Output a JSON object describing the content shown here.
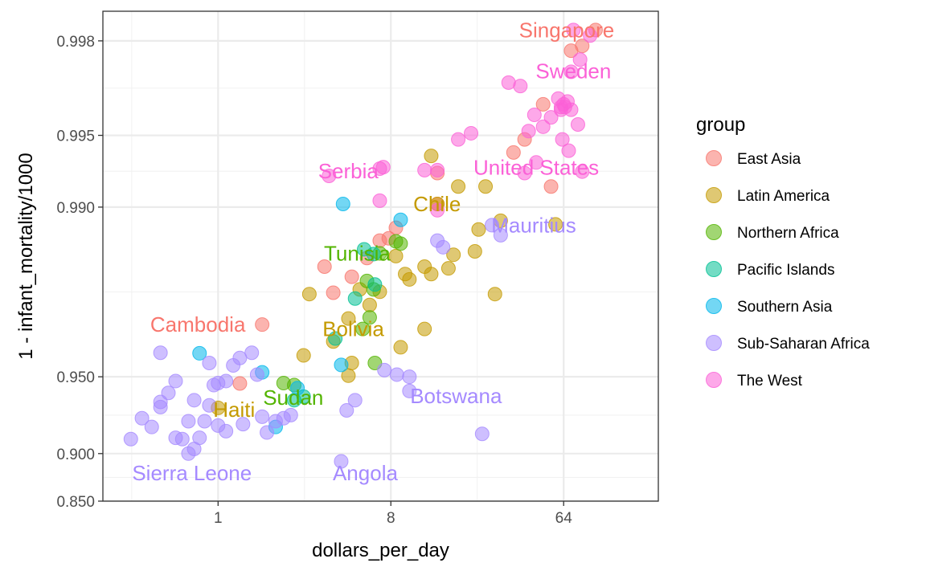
{
  "chart_data": {
    "type": "scatter",
    "xlabel": "dollars_per_day",
    "ylabel": "1 - infant_mortality/1000",
    "x_scale": "log2",
    "y_scale": "logit",
    "xlim": [
      0.25,
      200
    ],
    "ylim": [
      0.85,
      0.9985
    ],
    "x_ticks": [
      {
        "value": 1,
        "label": "1"
      },
      {
        "value": 8,
        "label": "8"
      },
      {
        "value": 64,
        "label": "64"
      }
    ],
    "y_ticks": [
      {
        "value": 0.85,
        "label": "0.850"
      },
      {
        "value": 0.9,
        "label": "0.900"
      },
      {
        "value": 0.95,
        "label": "0.950"
      },
      {
        "value": 0.99,
        "label": "0.990"
      },
      {
        "value": 0.995,
        "label": "0.995"
      },
      {
        "value": 0.998,
        "label": "0.998"
      }
    ],
    "grid": true,
    "legend": {
      "title": "group",
      "placement": "right"
    },
    "groups": [
      {
        "name": "East Asia",
        "color": "#F8766D"
      },
      {
        "name": "Latin America",
        "color": "#C49A00"
      },
      {
        "name": "Northern Africa",
        "color": "#53B400"
      },
      {
        "name": "Pacific Islands",
        "color": "#00C094"
      },
      {
        "name": "Southern Asia",
        "color": "#00B6EB"
      },
      {
        "name": "Sub-Saharan Africa",
        "color": "#A58AFF"
      },
      {
        "name": "The West",
        "color": "#FB61D7"
      }
    ],
    "series": [
      {
        "name": "East Asia",
        "points": [
          [
            94,
            0.9982
          ],
          [
            80,
            0.9979
          ],
          [
            70,
            0.9978
          ],
          [
            35,
            0.9941
          ],
          [
            40,
            0.9948
          ],
          [
            50,
            0.9963
          ],
          [
            14,
            0.9928
          ],
          [
            55,
            0.9918
          ],
          [
            1.7,
            0.9693
          ],
          [
            1.3,
            0.9468
          ],
          [
            3.6,
            0.9823
          ],
          [
            6,
            0.9837
          ],
          [
            7.8,
            0.9865
          ],
          [
            5,
            0.9805
          ],
          [
            4,
            0.9773
          ],
          [
            14,
            0.9903
          ],
          [
            8.5,
            0.9878
          ],
          [
            7,
            0.9862
          ]
        ]
      },
      {
        "name": "Latin America",
        "points": [
          [
            13,
            0.9939
          ],
          [
            18,
            0.9918
          ],
          [
            25,
            0.9918
          ],
          [
            14,
            0.9903
          ],
          [
            23,
            0.9876
          ],
          [
            30,
            0.9886
          ],
          [
            58,
            0.9882
          ],
          [
            12,
            0.9823
          ],
          [
            8.5,
            0.984
          ],
          [
            17,
            0.9842
          ],
          [
            16,
            0.982
          ],
          [
            13,
            0.981
          ],
          [
            22,
            0.9847
          ],
          [
            9.5,
            0.981
          ],
          [
            10,
            0.98
          ],
          [
            5.5,
            0.978
          ],
          [
            3,
            0.977
          ],
          [
            28,
            0.977
          ],
          [
            7,
            0.9775
          ],
          [
            6.2,
            0.9745
          ],
          [
            4.8,
            0.971
          ],
          [
            4,
            0.964
          ],
          [
            12,
            0.968
          ],
          [
            2.8,
            0.959
          ],
          [
            9,
            0.962
          ],
          [
            1,
            0.9335
          ],
          [
            5,
            0.956
          ],
          [
            4.8,
            0.9505
          ]
        ]
      },
      {
        "name": "Northern Africa",
        "points": [
          [
            8.5,
            0.9861
          ],
          [
            9,
            0.9858
          ],
          [
            7,
            0.9844
          ],
          [
            6,
            0.9797
          ],
          [
            6.5,
            0.978
          ],
          [
            6.2,
            0.9713
          ],
          [
            5.7,
            0.968
          ],
          [
            6.6,
            0.956
          ],
          [
            2.2,
            0.947
          ],
          [
            2.5,
            0.946
          ]
        ]
      },
      {
        "name": "Pacific Islands",
        "points": [
          [
            6.5,
            0.9843
          ],
          [
            5.8,
            0.985
          ],
          [
            6.6,
            0.979
          ],
          [
            5.2,
            0.976
          ],
          [
            4.1,
            0.965
          ],
          [
            2.8,
            0.94
          ],
          [
            2.5,
            0.938
          ]
        ]
      },
      {
        "name": "Southern Asia",
        "points": [
          [
            4.5,
            0.9903
          ],
          [
            9,
            0.9887
          ],
          [
            0.8,
            0.9598
          ],
          [
            1.7,
            0.952
          ],
          [
            2.6,
            0.9445
          ],
          [
            2.0,
            0.921
          ],
          [
            4.4,
            0.9552
          ]
        ]
      },
      {
        "name": "Sub-Saharan Africa",
        "points": [
          [
            27,
            0.9881
          ],
          [
            14,
            0.9862
          ],
          [
            15,
            0.9853
          ],
          [
            30,
            0.9869
          ],
          [
            0.35,
            0.912
          ],
          [
            0.45,
            0.921
          ],
          [
            0.4,
            0.927
          ],
          [
            0.5,
            0.934
          ],
          [
            0.55,
            0.942
          ],
          [
            0.6,
            0.948
          ],
          [
            0.5,
            0.937
          ],
          [
            0.65,
            0.912
          ],
          [
            0.7,
            0.9
          ],
          [
            0.75,
            0.904
          ],
          [
            0.8,
            0.913
          ],
          [
            0.85,
            0.925
          ],
          [
            0.9,
            0.935
          ],
          [
            0.95,
            0.946
          ],
          [
            1.0,
            0.947
          ],
          [
            1.1,
            0.948
          ],
          [
            1.2,
            0.955
          ],
          [
            1.3,
            0.958
          ],
          [
            1.5,
            0.96
          ],
          [
            1.6,
            0.951
          ],
          [
            1.7,
            0.928
          ],
          [
            1.8,
            0.917
          ],
          [
            2.0,
            0.925
          ],
          [
            2.2,
            0.927
          ],
          [
            2.4,
            0.929
          ],
          [
            4.4,
            0.893
          ],
          [
            5.2,
            0.938
          ],
          [
            7.4,
            0.953
          ],
          [
            8.6,
            0.951
          ],
          [
            10,
            0.95
          ],
          [
            10,
            0.943
          ],
          [
            24,
            0.916
          ],
          [
            0.6,
            0.913
          ],
          [
            0.7,
            0.925
          ],
          [
            1.0,
            0.922
          ],
          [
            0.75,
            0.938
          ],
          [
            1.35,
            0.923
          ],
          [
            1.1,
            0.918
          ],
          [
            4.7,
            0.932
          ],
          [
            0.5,
            0.96
          ],
          [
            0.9,
            0.956
          ]
        ]
      },
      {
        "name": "The West",
        "points": [
          [
            72,
            0.9982
          ],
          [
            88,
            0.9981
          ],
          [
            78,
            0.9976
          ],
          [
            70,
            0.9973
          ],
          [
            33,
            0.997
          ],
          [
            38,
            0.9969
          ],
          [
            60,
            0.9965
          ],
          [
            67,
            0.9964
          ],
          [
            64,
            0.9963
          ],
          [
            62,
            0.9962
          ],
          [
            65,
            0.9962
          ],
          [
            70,
            0.9961
          ],
          [
            45,
            0.9959
          ],
          [
            62,
            0.9961
          ],
          [
            55,
            0.9958
          ],
          [
            76,
            0.9955
          ],
          [
            42,
            0.9952
          ],
          [
            50,
            0.9954
          ],
          [
            63,
            0.9948
          ],
          [
            68,
            0.9942
          ],
          [
            46,
            0.9935
          ],
          [
            21,
            0.9951
          ],
          [
            18,
            0.9948
          ],
          [
            14,
            0.993
          ],
          [
            12,
            0.993
          ],
          [
            40,
            0.9928
          ],
          [
            7,
            0.9931
          ],
          [
            7.3,
            0.9932
          ],
          [
            3.8,
            0.9926
          ],
          [
            80,
            0.9929
          ],
          [
            7,
            0.9906
          ],
          [
            14,
            0.9897
          ]
        ]
      }
    ],
    "labels": [
      {
        "text": "Singapore",
        "group": "East Asia",
        "x": 94,
        "y": 0.9982
      },
      {
        "text": "Sweden",
        "group": "The West",
        "x": 72,
        "y": 0.9971
      },
      {
        "text": "United States",
        "group": "The West",
        "x": 46,
        "y": 0.9935
      },
      {
        "text": "Serbia",
        "group": "The West",
        "x": 3.8,
        "y": 0.9926
      },
      {
        "text": "Chile",
        "group": "Latin America",
        "x": 11.5,
        "y": 0.9903
      },
      {
        "text": "Mauritius",
        "group": "Sub-Saharan Africa",
        "x": 27,
        "y": 0.9881
      },
      {
        "text": "Tunisia",
        "group": "Northern Africa",
        "x": 7,
        "y": 0.9844
      },
      {
        "text": "Bolivia",
        "group": "Latin America",
        "x": 5.5,
        "y": 0.968
      },
      {
        "text": "Cambodia",
        "group": "East Asia",
        "x": 1.7,
        "y": 0.9693
      },
      {
        "text": "Botswana",
        "group": "Sub-Saharan Africa",
        "x": 10,
        "y": 0.943
      },
      {
        "text": "Sudan",
        "group": "Northern Africa",
        "x": 2.2,
        "y": 0.947
      },
      {
        "text": "Haiti",
        "group": "Latin America",
        "x": 1,
        "y": 0.9335
      },
      {
        "text": "Sierra Leone",
        "group": "Sub-Saharan Africa",
        "x": 0.35,
        "y": 0.88
      },
      {
        "text": "Angola",
        "group": "Sub-Saharan Africa",
        "x": 4.4,
        "y": 0.88
      }
    ]
  }
}
